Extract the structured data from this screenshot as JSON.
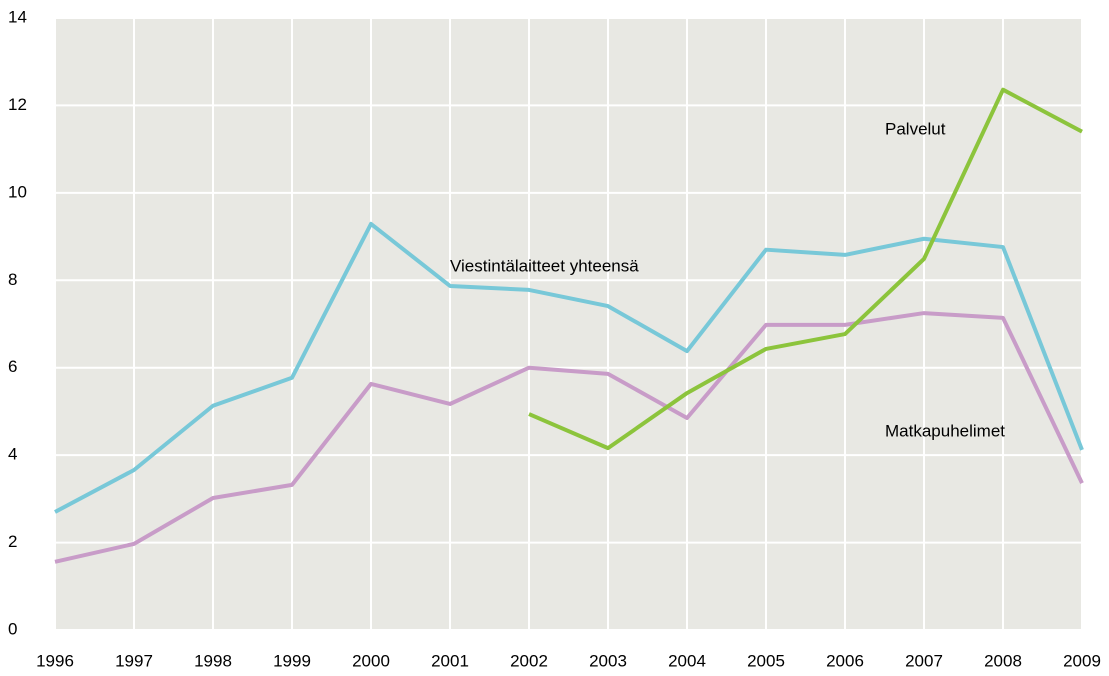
{
  "chart_data": {
    "type": "line",
    "x": [
      "1996",
      "1997",
      "1998",
      "1999",
      "2000",
      "2001",
      "2002",
      "2003",
      "2004",
      "2005",
      "2006",
      "2007",
      "2008",
      "2009"
    ],
    "series": [
      {
        "name": "Viestintälaitteet yhteensä",
        "color": "#78c8d8",
        "values": [
          2.7,
          3.66,
          5.13,
          5.77,
          9.29,
          7.87,
          7.78,
          7.41,
          6.38,
          8.7,
          8.58,
          8.95,
          8.76,
          4.12
        ]
      },
      {
        "name": "Matkapuhelimet",
        "color": "#c89cc8",
        "values": [
          1.56,
          1.97,
          3.02,
          3.32,
          5.63,
          5.17,
          6.0,
          5.86,
          4.85,
          6.98,
          6.98,
          7.25,
          7.14,
          3.36
        ]
      },
      {
        "name": "Palvelut",
        "color": "#8cc43c",
        "values": [
          null,
          null,
          null,
          null,
          null,
          null,
          4.94,
          4.16,
          5.42,
          6.43,
          6.77,
          8.49,
          12.36,
          11.4
        ]
      }
    ],
    "ylim": [
      0,
      14
    ],
    "yticks": [
      0,
      2,
      4,
      6,
      8,
      10,
      12,
      14
    ],
    "grid": true
  }
}
